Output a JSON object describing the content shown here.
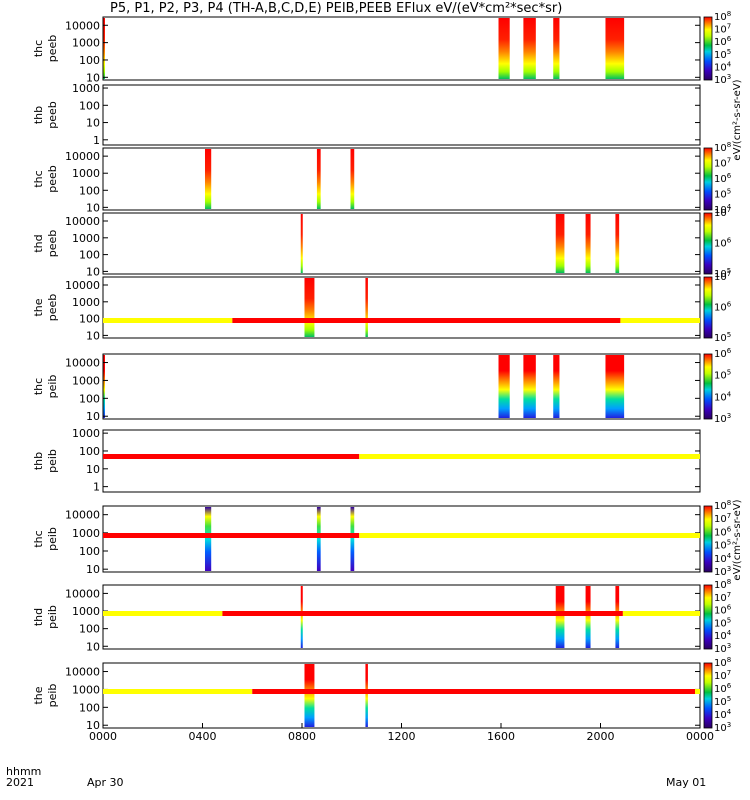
{
  "title": "P5, P1, P2, P3, P4 (TH-A,B,C,D,E) PEIB,PEEB EFlux eV/(eV*cm²*sec*sr)",
  "xaxis": {
    "row_label": "hhmm",
    "year_label": "2021",
    "ticks": [
      "0000",
      "0400",
      "0800",
      "1200",
      "1600",
      "2000",
      "0000"
    ],
    "date_labels": [
      "Apr 30",
      "May 01"
    ]
  },
  "colorbar_unit": "eV/(cm²-s-sr-eV)",
  "colors": {
    "flag_red": "#ff0000",
    "flag_yellow": "#ffff00",
    "frame": "#000000"
  },
  "chart_data": {
    "type": "heatmap",
    "x_unit": "hours since 2021-04-30 00:00 UT",
    "x_range": [
      0,
      24
    ],
    "y_scale": "log",
    "flag_bars": [
      {
        "after_panel": 5,
        "segments": [
          {
            "x": [
              0,
              5.2
            ],
            "state": "yellow"
          },
          {
            "x": [
              5.2,
              20.8
            ],
            "state": "red"
          },
          {
            "x": [
              20.8,
              24
            ],
            "state": "yellow"
          }
        ]
      },
      {
        "after_panel": 6,
        "segments": [
          {
            "x": [
              0,
              10.3
            ],
            "state": "red"
          },
          {
            "x": [
              10.3,
              24
            ],
            "state": "yellow"
          }
        ]
      },
      {
        "after_panel": 7,
        "segments": [
          {
            "x": [
              0,
              10.3
            ],
            "state": "red"
          },
          {
            "x": [
              10.3,
              24
            ],
            "state": "yellow"
          }
        ]
      },
      {
        "after_panel": 8,
        "segments": [
          {
            "x": [
              0,
              4.8
            ],
            "state": "yellow"
          },
          {
            "x": [
              4.8,
              20.9
            ],
            "state": "red"
          },
          {
            "x": [
              20.9,
              24
            ],
            "state": "yellow"
          }
        ]
      },
      {
        "after_panel": 9,
        "segments": [
          {
            "x": [
              0,
              6.0
            ],
            "state": "yellow"
          },
          {
            "x": [
              6.0,
              23.8
            ],
            "state": "red"
          },
          {
            "x": [
              23.8,
              24
            ],
            "state": "yellow"
          }
        ]
      }
    ],
    "panels": [
      {
        "label": [
          "thc",
          "peeb"
        ],
        "yticks": [
          "10000",
          "1000",
          "100",
          "10"
        ],
        "ylim": [
          7,
          30000
        ],
        "cbar": {
          "min_exp": 3,
          "max_exp": 8
        },
        "palette": "peeb",
        "bursts": [
          [
            0,
            0.05
          ],
          [
            15.9,
            16.35
          ],
          [
            16.9,
            17.4
          ],
          [
            18.1,
            18.35
          ],
          [
            20.2,
            20.95
          ]
        ]
      },
      {
        "label": [
          "thb",
          "peeb"
        ],
        "yticks": [
          "1000",
          "100",
          "10",
          "1"
        ],
        "ylim": [
          0.5,
          1500
        ],
        "cbar": null,
        "palette": "peeb",
        "bursts": []
      },
      {
        "label": [
          "thc",
          "peeb"
        ],
        "yticks": [
          "10000",
          "1000",
          "100",
          "10"
        ],
        "ylim": [
          7,
          30000
        ],
        "cbar": {
          "min_exp": 4,
          "max_exp": 8
        },
        "palette": "peeb",
        "bursts": [
          [
            4.1,
            4.35
          ],
          [
            8.6,
            8.75
          ],
          [
            9.95,
            10.1
          ]
        ]
      },
      {
        "label": [
          "thd",
          "peeb"
        ],
        "yticks": [
          "10000",
          "1000",
          "100",
          "10"
        ],
        "ylim": [
          7,
          30000
        ],
        "cbar": {
          "min_exp": 5,
          "max_exp": 7
        },
        "palette": "peeb",
        "bursts": [
          [
            7.95,
            8.0
          ],
          [
            18.2,
            18.55
          ],
          [
            19.4,
            19.6
          ],
          [
            20.6,
            20.75
          ]
        ]
      },
      {
        "label": [
          "the",
          "peeb"
        ],
        "yticks": [
          "10000",
          "1000",
          "100",
          "10"
        ],
        "ylim": [
          7,
          30000
        ],
        "cbar": {
          "min_exp": 5,
          "max_exp": 7
        },
        "palette": "peeb",
        "bursts": [
          [
            8.1,
            8.5
          ],
          [
            10.55,
            10.65
          ]
        ]
      },
      {
        "label": [
          "thc",
          "peib"
        ],
        "yticks": [
          "10000",
          "1000",
          "100",
          "10"
        ],
        "ylim": [
          7,
          30000
        ],
        "cbar": {
          "min_exp": 3,
          "max_exp": 6
        },
        "palette": "peib",
        "bursts": [
          [
            0,
            0.05
          ],
          [
            15.9,
            16.35
          ],
          [
            16.9,
            17.4
          ],
          [
            18.1,
            18.35
          ],
          [
            20.2,
            20.95
          ]
        ]
      },
      {
        "label": [
          "thb",
          "peib"
        ],
        "yticks": [
          "1000",
          "100",
          "10",
          "1"
        ],
        "ylim": [
          0.5,
          1500
        ],
        "cbar": null,
        "palette": "peib",
        "bursts": []
      },
      {
        "label": [
          "thc",
          "peib"
        ],
        "yticks": [
          "10000",
          "1000",
          "100",
          "10"
        ],
        "ylim": [
          7,
          30000
        ],
        "cbar": {
          "min_exp": 3,
          "max_exp": 8
        },
        "palette": "peib",
        "bursts": [
          [
            4.1,
            4.35
          ],
          [
            8.6,
            8.75
          ],
          [
            9.95,
            10.1
          ]
        ]
      },
      {
        "label": [
          "thd",
          "peib"
        ],
        "yticks": [
          "10000",
          "1000",
          "100",
          "10"
        ],
        "ylim": [
          7,
          30000
        ],
        "cbar": {
          "min_exp": 3,
          "max_exp": 8
        },
        "palette": "peib",
        "bursts": [
          [
            7.95,
            8.0
          ],
          [
            18.2,
            18.55
          ],
          [
            19.4,
            19.6
          ],
          [
            20.6,
            20.75
          ]
        ]
      },
      {
        "label": [
          "the",
          "peib"
        ],
        "yticks": [
          "10000",
          "1000",
          "100",
          "10"
        ],
        "ylim": [
          7,
          30000
        ],
        "cbar": {
          "min_exp": 3,
          "max_exp": 8
        },
        "palette": "peib",
        "bursts": [
          [
            8.1,
            8.5
          ],
          [
            10.55,
            10.65
          ]
        ]
      }
    ]
  }
}
